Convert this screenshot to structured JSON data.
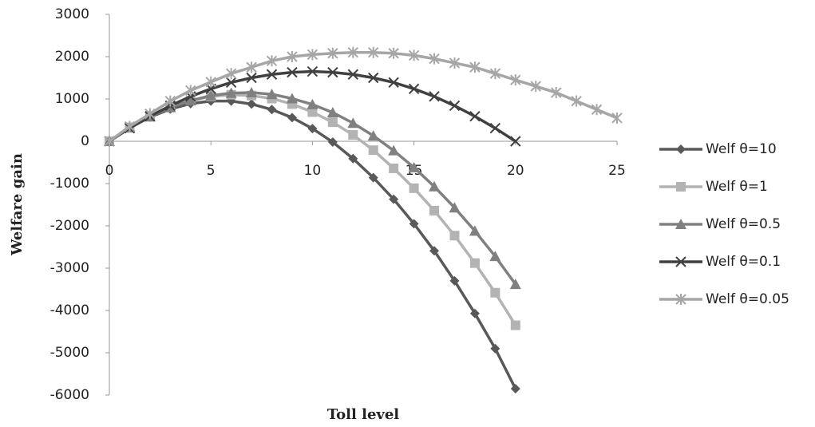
{
  "chart_data": {
    "type": "line",
    "xlabel": "Toll level",
    "ylabel": "Welfare gain",
    "x": [
      0,
      1,
      2,
      3,
      4,
      5,
      6,
      7,
      8,
      9,
      10,
      11,
      12,
      13,
      14,
      15,
      16,
      17,
      18,
      19,
      20,
      21,
      22,
      23,
      24,
      25
    ],
    "xlim": [
      0,
      25
    ],
    "xticks": [
      0,
      5,
      10,
      15,
      20,
      25
    ],
    "ylim": [
      -6000,
      3000
    ],
    "yticks": [
      -6000,
      -5000,
      -4000,
      -3000,
      -2000,
      -1000,
      0,
      1000,
      2000,
      3000
    ],
    "grid": false,
    "legend": "right",
    "series": [
      {
        "name": "Welf θ=10",
        "color": "#595959",
        "marker": "diamond",
        "values": [
          0,
          320,
          570,
          760,
          890,
          950,
          950,
          880,
          750,
          560,
          300,
          -20,
          -410,
          -860,
          -1370,
          -1950,
          -2590,
          -3300,
          -4070,
          -4900,
          -5850,
          null,
          null,
          null,
          null,
          null
        ]
      },
      {
        "name": "Welf θ=1",
        "color": "#b3b3b3",
        "marker": "square",
        "values": [
          0,
          330,
          600,
          810,
          960,
          1060,
          1100,
          1080,
          1010,
          880,
          690,
          450,
          150,
          -210,
          -640,
          -1110,
          -1640,
          -2230,
          -2880,
          -3580,
          -4350,
          null,
          null,
          null,
          null,
          null
        ]
      },
      {
        "name": "Welf θ=0.5",
        "color": "#808080",
        "marker": "triangle",
        "values": [
          0,
          320,
          580,
          800,
          960,
          1080,
          1140,
          1150,
          1110,
          1010,
          870,
          680,
          430,
          130,
          -220,
          -620,
          -1070,
          -1570,
          -2120,
          -2720,
          -3380,
          null,
          null,
          null,
          null,
          null
        ]
      },
      {
        "name": "Welf θ=0.1",
        "color": "#404040",
        "marker": "x",
        "values": [
          0,
          310,
          590,
          840,
          1060,
          1240,
          1390,
          1500,
          1580,
          1630,
          1650,
          1630,
          1580,
          1500,
          1390,
          1240,
          1060,
          840,
          590,
          310,
          0,
          null,
          null,
          null,
          null,
          null
        ]
      },
      {
        "name": "Welf θ=0.05",
        "color": "#a6a6a6",
        "marker": "star",
        "values": [
          0,
          350,
          650,
          950,
          1200,
          1400,
          1600,
          1750,
          1900,
          2000,
          2050,
          2080,
          2100,
          2100,
          2080,
          2030,
          1950,
          1850,
          1750,
          1600,
          1450,
          1300,
          1150,
          950,
          750,
          550
        ]
      }
    ]
  }
}
